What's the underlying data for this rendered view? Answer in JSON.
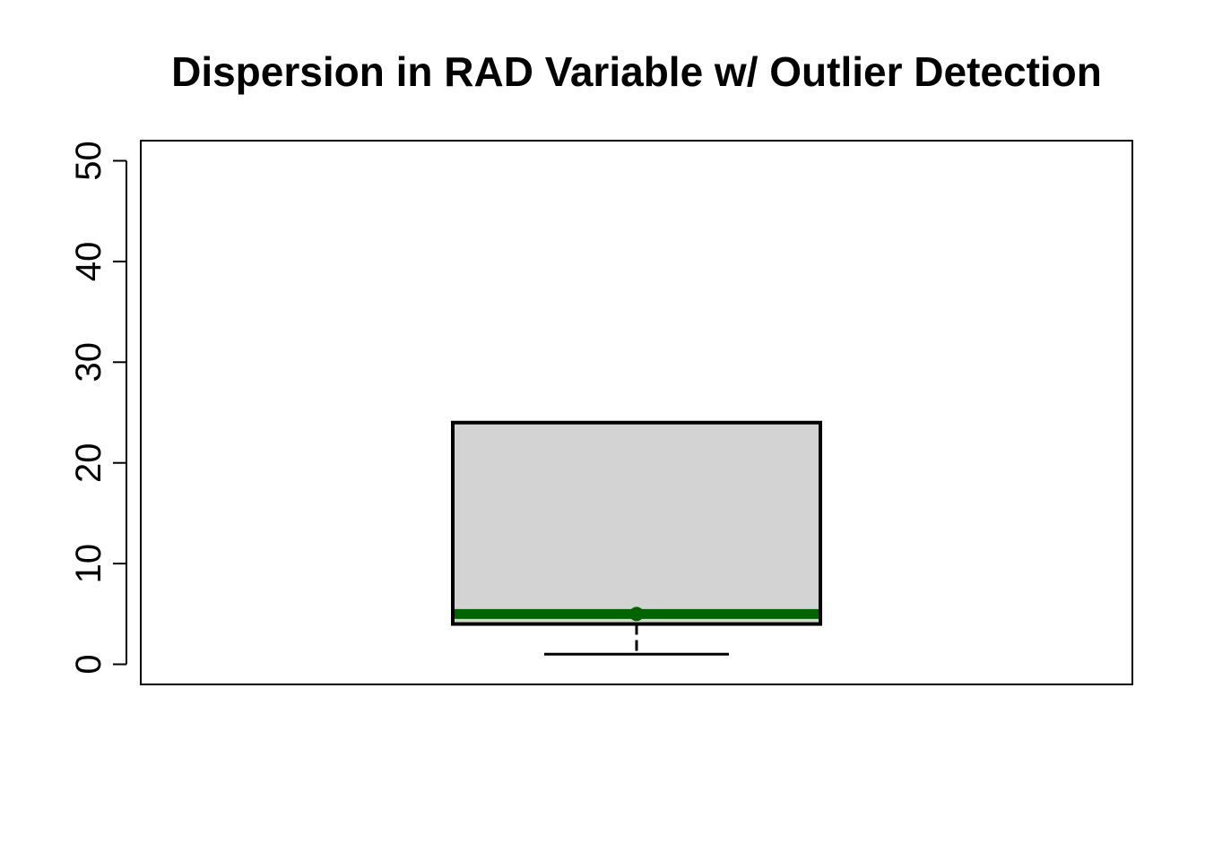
{
  "chart_data": {
    "type": "boxplot",
    "title": "Dispersion in RAD Variable w/ Outlier Detection",
    "xlabel": "",
    "ylabel": "",
    "ylim": [
      -2,
      52
    ],
    "y_ticks": [
      0,
      10,
      20,
      30,
      40,
      50
    ],
    "y_tick_labels": [
      "0",
      "10",
      "20",
      "30",
      "40",
      "50"
    ],
    "box": {
      "min": 1,
      "q1": 4,
      "median": 5,
      "mean": 5,
      "q3": 24,
      "max": 24
    },
    "outliers": [],
    "colors": {
      "box_fill": "#d3d3d3",
      "box_border": "#000000",
      "median_line": "#006400",
      "mean_point": "#006400"
    },
    "grid": false,
    "legend": "none"
  }
}
